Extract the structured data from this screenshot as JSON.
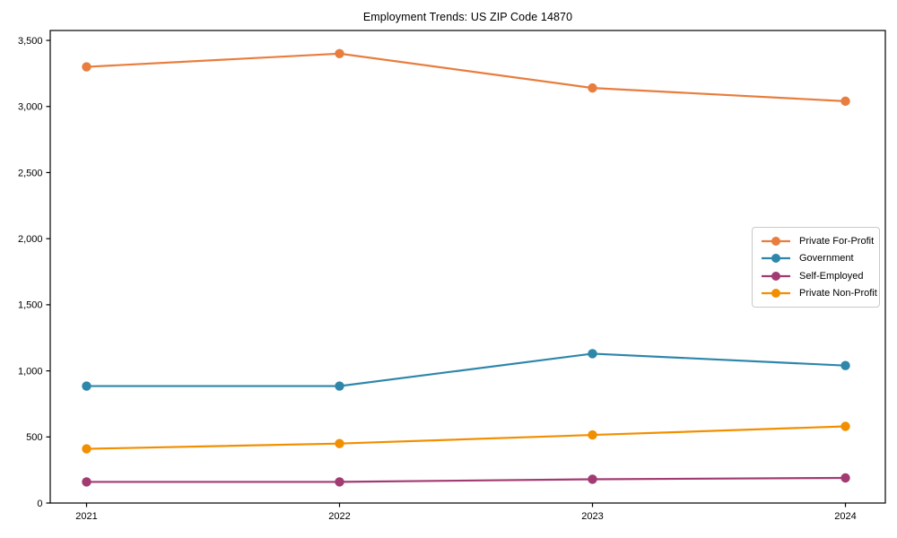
{
  "chart_data": {
    "type": "line",
    "title": "Employment Trends: US ZIP Code 14870",
    "x_categories": [
      "2021",
      "2022",
      "2023",
      "2024"
    ],
    "series": [
      {
        "name": "Private For-Profit",
        "color": "#e87d3e",
        "values": [
          3300,
          3400,
          3140,
          3040
        ]
      },
      {
        "name": "Government",
        "color": "#2e86ab",
        "values": [
          885,
          885,
          1130,
          1040
        ]
      },
      {
        "name": "Self-Employed",
        "color": "#a23b72",
        "values": [
          160,
          160,
          180,
          190
        ]
      },
      {
        "name": "Private Non-Profit",
        "color": "#f18f01",
        "values": [
          410,
          450,
          515,
          580
        ]
      }
    ],
    "xlabel": "",
    "ylabel": "",
    "ylim": [
      0,
      3575
    ],
    "yticks": [
      0,
      500,
      1000,
      1500,
      2000,
      2500,
      3000,
      3500
    ],
    "ytick_labels": [
      "0",
      "500",
      "1,000",
      "1,500",
      "2,000",
      "2,500",
      "3,000",
      "3,500"
    ],
    "grid": false,
    "marker": "circle",
    "legend_position": "center-right",
    "colors": {
      "axis": "#000000",
      "text": "#000000",
      "background": "#ffffff",
      "legend_border": "#c9c9c9"
    }
  }
}
